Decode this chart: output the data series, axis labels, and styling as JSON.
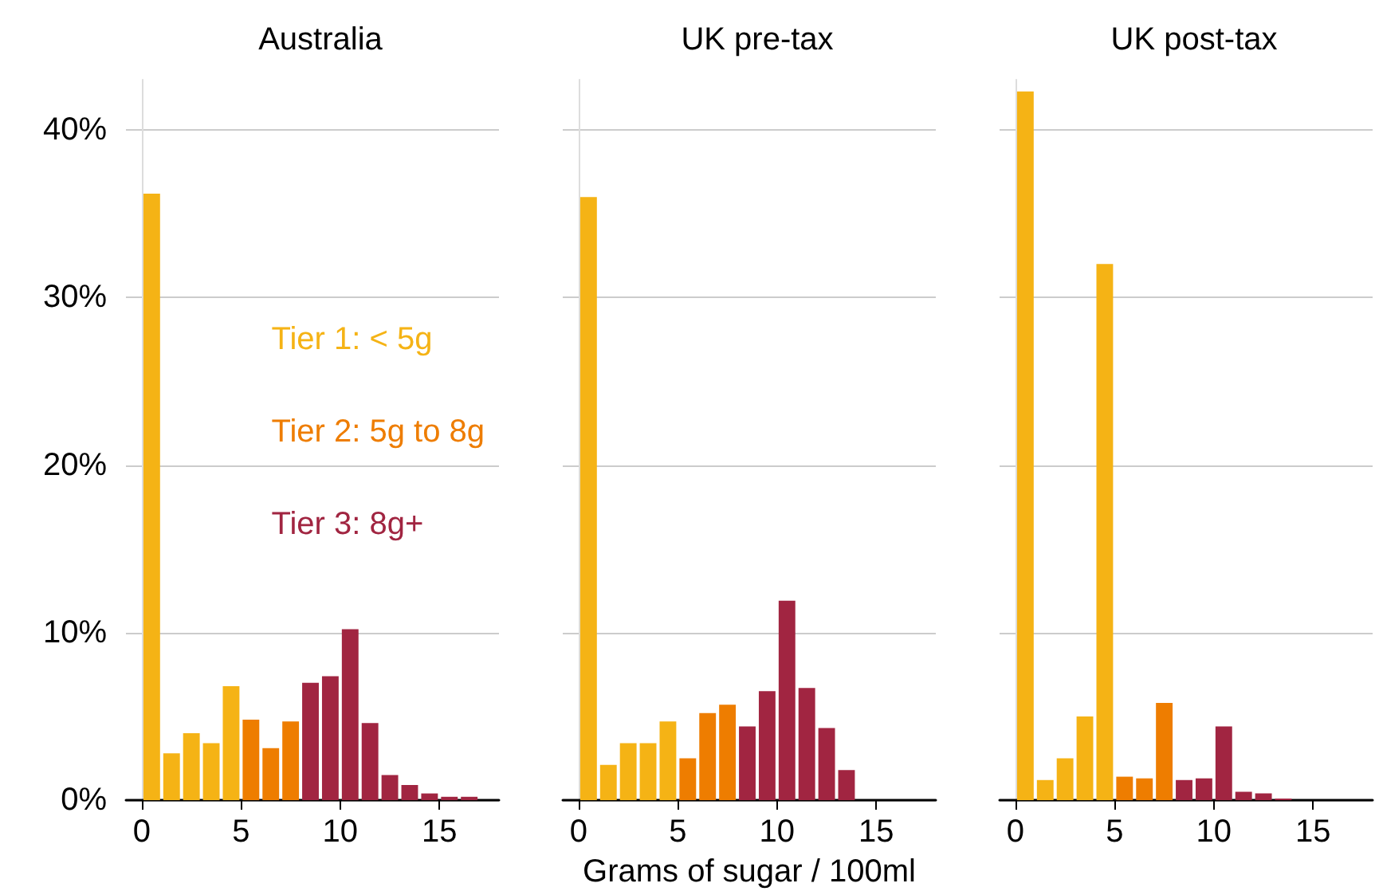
{
  "chart_data": [
    {
      "type": "histogram",
      "title": "Australia",
      "bins": [
        0,
        1,
        2,
        3,
        4,
        5,
        6,
        7,
        8,
        9,
        10,
        11,
        12,
        13,
        14,
        15,
        16,
        17
      ],
      "series": [
        {
          "name": "Tier 1: < 5g",
          "color": "#f5b315",
          "values": [
            36.2,
            2.8,
            4.0,
            3.4,
            6.8,
            null,
            null,
            null,
            null,
            null,
            null,
            null,
            null,
            null,
            null,
            null,
            null
          ]
        },
        {
          "name": "Tier 2: 5g to 8g",
          "color": "#ee7d00",
          "values": [
            null,
            null,
            null,
            null,
            null,
            4.8,
            3.1,
            4.7,
            null,
            null,
            null,
            null,
            null,
            null,
            null,
            null,
            null
          ]
        },
        {
          "name": "Tier 3: 8g+",
          "color": "#a12541",
          "values": [
            null,
            null,
            null,
            null,
            null,
            null,
            null,
            null,
            7.0,
            7.4,
            10.2,
            4.6,
            1.5,
            0.9,
            0.4,
            0.2,
            0.2
          ]
        }
      ],
      "xlim": [
        -0.8,
        18
      ],
      "xticks": [
        0,
        5,
        10,
        15
      ],
      "ylim": [
        0,
        43
      ],
      "yticks": [
        {
          "value": 0,
          "label": "0%"
        },
        {
          "value": 10,
          "label": "10%"
        },
        {
          "value": 20,
          "label": "20%"
        },
        {
          "value": 30,
          "label": "30%"
        },
        {
          "value": 40,
          "label": "40%"
        }
      ],
      "grid": "y",
      "legend": "right"
    },
    {
      "type": "histogram",
      "title": "UK pre-tax",
      "xlabel": "Grams of sugar / 100ml",
      "bins": [
        0,
        1,
        2,
        3,
        4,
        5,
        6,
        7,
        8,
        9,
        10,
        11,
        12,
        13,
        14
      ],
      "series": [
        {
          "color": "#f5b315",
          "values": [
            36.0,
            2.1,
            3.4,
            3.4,
            4.7,
            null,
            null,
            null,
            null,
            null,
            null,
            null,
            null,
            null
          ]
        },
        {
          "color": "#ee7d00",
          "values": [
            null,
            null,
            null,
            null,
            null,
            2.5,
            5.2,
            5.7,
            null,
            null,
            null,
            null,
            null,
            null
          ]
        },
        {
          "color": "#a12541",
          "values": [
            null,
            null,
            null,
            null,
            null,
            null,
            null,
            null,
            4.4,
            6.5,
            11.9,
            6.7,
            4.3,
            1.8
          ]
        }
      ],
      "xlim": [
        -0.8,
        18
      ],
      "xticks": [
        0,
        5,
        10,
        15
      ],
      "ylim": [
        0,
        43
      ],
      "yticks": [
        {
          "value": 0,
          "label": null
        },
        {
          "value": 10,
          "label": null
        },
        {
          "value": 20,
          "label": null
        },
        {
          "value": 30,
          "label": null
        },
        {
          "value": 40,
          "label": null
        }
      ],
      "grid": "y",
      "tick_labels": "x"
    },
    {
      "type": "histogram",
      "title": "UK post-tax",
      "bins": [
        0,
        1,
        2,
        3,
        4,
        5,
        6,
        7,
        8,
        9,
        10,
        11,
        12,
        13,
        14
      ],
      "series": [
        {
          "color": "#f5b315",
          "values": [
            42.3,
            1.2,
            2.5,
            5.0,
            32.0,
            null,
            null,
            null,
            null,
            null,
            null,
            null,
            null,
            null
          ]
        },
        {
          "color": "#ee7d00",
          "values": [
            null,
            null,
            null,
            null,
            null,
            1.4,
            1.3,
            5.8,
            null,
            null,
            null,
            null,
            null,
            null
          ]
        },
        {
          "color": "#a12541",
          "values": [
            null,
            null,
            null,
            null,
            null,
            null,
            null,
            null,
            1.2,
            1.3,
            4.4,
            0.5,
            0.4,
            0.1
          ]
        }
      ],
      "xlim": [
        -0.8,
        18
      ],
      "xticks": [
        0,
        5,
        10,
        15
      ],
      "yticks": [
        {
          "value": 0,
          "label": null
        },
        {
          "value": 10,
          "label": null
        },
        {
          "value": 20,
          "label": null
        },
        {
          "value": 30,
          "label": null
        },
        {
          "value": 40,
          "label": null
        }
      ],
      "ylim": [
        0,
        43
      ],
      "grid": "y",
      "tick_labels": "x"
    }
  ]
}
